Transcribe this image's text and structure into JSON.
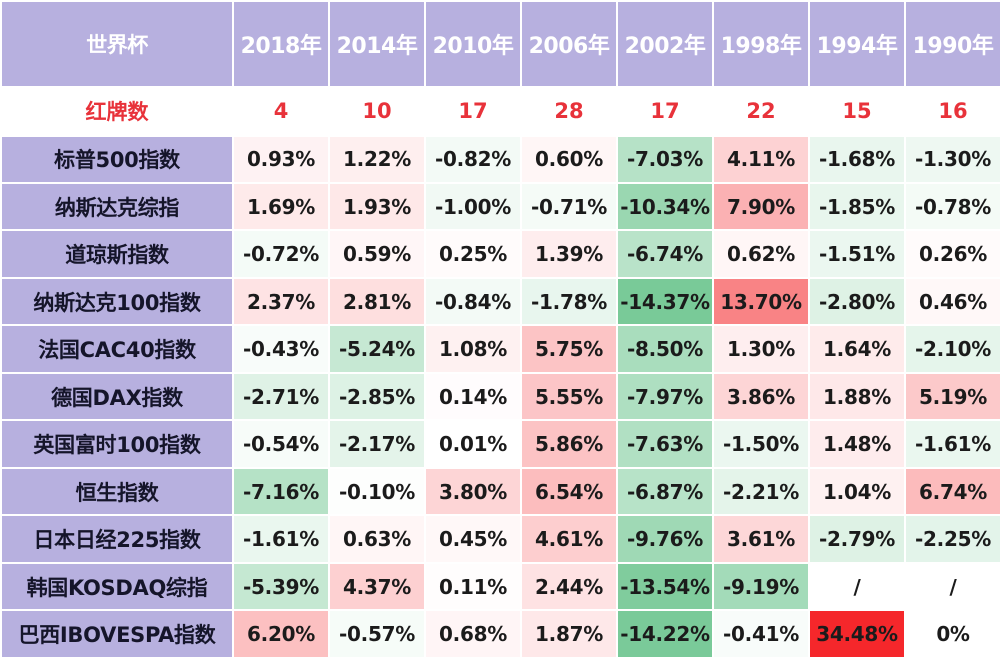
{
  "table": {
    "corner_label": "世界杯",
    "years": [
      "2018年",
      "2014年",
      "2010年",
      "2006年",
      "2002年",
      "1998年",
      "1994年",
      "1990年"
    ],
    "red_cards": {
      "label": "红牌数",
      "values": [
        "4",
        "10",
        "17",
        "28",
        "17",
        "22",
        "15",
        "16"
      ]
    },
    "rows": [
      {
        "label": "标普500指数",
        "values": [
          "0.93%",
          "1.22%",
          "-0.82%",
          "0.60%",
          "-7.03%",
          "4.11%",
          "-1.68%",
          "-1.30%"
        ]
      },
      {
        "label": "纳斯达克综指",
        "values": [
          "1.69%",
          "1.93%",
          "-1.00%",
          "-0.71%",
          "-10.34%",
          "7.90%",
          "-1.85%",
          "-0.78%"
        ]
      },
      {
        "label": "道琼斯指数",
        "values": [
          "-0.72%",
          "0.59%",
          "0.25%",
          "1.39%",
          "-6.74%",
          "0.62%",
          "-1.51%",
          "0.26%"
        ]
      },
      {
        "label": "纳斯达克100指数",
        "values": [
          "2.37%",
          "2.81%",
          "-0.84%",
          "-1.78%",
          "-14.37%",
          "13.70%",
          "-2.80%",
          "0.46%"
        ]
      },
      {
        "label": "法国CAC40指数",
        "values": [
          "-0.43%",
          "-5.24%",
          "1.08%",
          "5.75%",
          "-8.50%",
          "1.30%",
          "1.64%",
          "-2.10%"
        ]
      },
      {
        "label": "德国DAX指数",
        "values": [
          "-2.71%",
          "-2.85%",
          "0.14%",
          "5.55%",
          "-7.97%",
          "3.86%",
          "1.88%",
          "5.19%"
        ]
      },
      {
        "label": "英国富时100指数",
        "values": [
          "-0.54%",
          "-2.17%",
          "0.01%",
          "5.86%",
          "-7.63%",
          "-1.50%",
          "1.48%",
          "-1.61%"
        ]
      },
      {
        "label": "恒生指数",
        "values": [
          "-7.16%",
          "-0.10%",
          "3.80%",
          "6.54%",
          "-6.87%",
          "-2.21%",
          "1.04%",
          "6.74%"
        ]
      },
      {
        "label": "日本日经225指数",
        "values": [
          "-1.61%",
          "0.63%",
          "0.45%",
          "4.61%",
          "-9.76%",
          "3.61%",
          "-2.79%",
          "-2.25%"
        ]
      },
      {
        "label": "韩国KOSDAQ综指",
        "values": [
          "-5.39%",
          "4.37%",
          "0.11%",
          "2.44%",
          "-13.54%",
          "-9.19%",
          "/",
          "/"
        ]
      },
      {
        "label": "巴西IBOVESPA指数",
        "values": [
          "6.20%",
          "-0.57%",
          "0.68%",
          "1.87%",
          "-14.22%",
          "-0.41%",
          "34.48%",
          "0%"
        ]
      }
    ]
  },
  "colors": {
    "header_bg": "#b7b0df",
    "header_text": "#ffffff",
    "red_card_text": "#e8323a",
    "positive_extreme": "#f5272b",
    "negative_extreme": "#1fa653",
    "neutral": "#ffffff"
  }
}
